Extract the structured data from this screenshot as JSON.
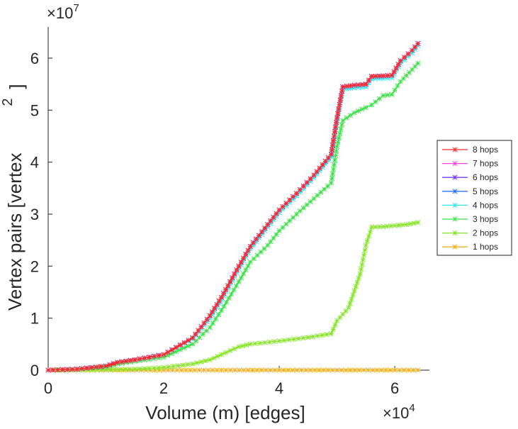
{
  "chart_data": {
    "type": "line",
    "xlabel": "Volume (m) [edges]",
    "ylabel": "Vertex pairs [vertex",
    "ylabel_superscript": "2",
    "ylabel_close": "]",
    "x_exponent_label": "×10",
    "x_exponent": "4",
    "y_exponent_label": "×10",
    "y_exponent": "7",
    "xlim": [
      0,
      6.6
    ],
    "ylim": [
      0,
      6.6
    ],
    "xticks": [
      0,
      2,
      4,
      6
    ],
    "xtick_labels": [
      "0",
      "2",
      "4",
      "6"
    ],
    "yticks": [
      0,
      1,
      2,
      3,
      4,
      5,
      6
    ],
    "ytick_labels": [
      "0",
      "1",
      "2",
      "3",
      "4",
      "5",
      "6"
    ],
    "x_units_scale": 10000,
    "y_units_scale": 10000000,
    "grid": false,
    "legend_position": "right",
    "series": [
      {
        "name": "8 hops",
        "color": "#ff2a2a",
        "x": [
          0,
          0.5,
          1.0,
          1.2,
          1.5,
          2.0,
          2.5,
          2.8,
          3.0,
          3.3,
          3.5,
          3.8,
          4.0,
          4.3,
          4.6,
          4.9,
          5.0,
          5.1,
          5.3,
          5.5,
          5.6,
          5.8,
          5.95,
          6.1,
          6.3,
          6.4
        ],
        "y": [
          0,
          0.02,
          0.08,
          0.15,
          0.2,
          0.3,
          0.62,
          1.05,
          1.4,
          2.0,
          2.38,
          2.8,
          3.08,
          3.4,
          3.75,
          4.15,
          4.85,
          5.45,
          5.48,
          5.5,
          5.65,
          5.66,
          5.67,
          5.95,
          6.15,
          6.28
        ]
      },
      {
        "name": "7 hops",
        "color": "#ff44dd",
        "x": [
          0,
          0.5,
          1.0,
          1.2,
          1.5,
          2.0,
          2.5,
          2.8,
          3.0,
          3.3,
          3.5,
          3.8,
          4.0,
          4.3,
          4.6,
          4.9,
          5.0,
          5.1,
          5.3,
          5.5,
          5.6,
          5.8,
          5.95,
          6.1,
          6.3,
          6.4
        ],
        "y": [
          0,
          0.02,
          0.08,
          0.15,
          0.2,
          0.3,
          0.62,
          1.05,
          1.4,
          2.0,
          2.38,
          2.8,
          3.08,
          3.4,
          3.75,
          4.15,
          4.85,
          5.45,
          5.48,
          5.5,
          5.65,
          5.66,
          5.67,
          5.95,
          6.15,
          6.28
        ]
      },
      {
        "name": "6 hops",
        "color": "#7a3cff",
        "x": [
          0,
          0.5,
          1.0,
          1.2,
          1.5,
          2.0,
          2.5,
          2.8,
          3.0,
          3.3,
          3.5,
          3.8,
          4.0,
          4.3,
          4.6,
          4.9,
          5.0,
          5.1,
          5.3,
          5.5,
          5.6,
          5.8,
          5.95,
          6.1,
          6.3,
          6.4
        ],
        "y": [
          0,
          0.02,
          0.08,
          0.15,
          0.2,
          0.3,
          0.62,
          1.05,
          1.4,
          2.0,
          2.38,
          2.8,
          3.08,
          3.4,
          3.75,
          4.15,
          4.85,
          5.45,
          5.48,
          5.5,
          5.65,
          5.66,
          5.67,
          5.95,
          6.15,
          6.28
        ]
      },
      {
        "name": "5 hops",
        "color": "#2e74ff",
        "x": [
          0,
          0.5,
          1.0,
          1.2,
          1.5,
          2.0,
          2.5,
          2.8,
          3.0,
          3.3,
          3.5,
          3.8,
          4.0,
          4.3,
          4.6,
          4.9,
          5.0,
          5.1,
          5.3,
          5.5,
          5.6,
          5.8,
          5.95,
          6.1,
          6.3,
          6.4
        ],
        "y": [
          0,
          0.02,
          0.08,
          0.15,
          0.2,
          0.3,
          0.62,
          1.05,
          1.4,
          2.0,
          2.38,
          2.8,
          3.08,
          3.4,
          3.75,
          4.15,
          4.85,
          5.45,
          5.48,
          5.5,
          5.65,
          5.66,
          5.67,
          5.95,
          6.15,
          6.28
        ]
      },
      {
        "name": "4 hops",
        "color": "#33e8ef",
        "x": [
          0,
          0.5,
          1.0,
          1.2,
          1.5,
          2.0,
          2.5,
          2.8,
          3.0,
          3.3,
          3.5,
          3.8,
          4.0,
          4.3,
          4.6,
          4.9,
          5.0,
          5.1,
          5.3,
          5.5,
          5.6,
          5.8,
          5.95,
          6.1,
          6.3,
          6.4
        ],
        "y": [
          0,
          0.02,
          0.08,
          0.15,
          0.2,
          0.3,
          0.6,
          1.0,
          1.35,
          1.95,
          2.33,
          2.75,
          3.03,
          3.35,
          3.7,
          4.1,
          4.8,
          5.4,
          5.43,
          5.45,
          5.6,
          5.61,
          5.62,
          5.9,
          6.1,
          6.24
        ]
      },
      {
        "name": "3 hops",
        "color": "#3ee24a",
        "x": [
          0,
          0.5,
          1.0,
          1.2,
          1.5,
          2.0,
          2.5,
          2.8,
          3.0,
          3.3,
          3.5,
          3.8,
          4.0,
          4.3,
          4.6,
          4.9,
          5.0,
          5.1,
          5.3,
          5.5,
          5.6,
          5.8,
          5.95,
          6.1,
          6.3,
          6.4
        ],
        "y": [
          0,
          0.02,
          0.06,
          0.12,
          0.17,
          0.25,
          0.5,
          0.82,
          1.15,
          1.7,
          2.08,
          2.4,
          2.68,
          3.0,
          3.3,
          3.6,
          4.3,
          4.8,
          4.95,
          5.05,
          5.1,
          5.28,
          5.3,
          5.55,
          5.78,
          5.9
        ]
      },
      {
        "name": "2 hops",
        "color": "#88e62a",
        "x": [
          0,
          1.0,
          1.5,
          2.0,
          2.5,
          2.8,
          3.0,
          3.3,
          3.5,
          4.0,
          4.5,
          4.9,
          5.0,
          5.2,
          5.4,
          5.5,
          5.6,
          5.8,
          6.0,
          6.2,
          6.4
        ],
        "y": [
          0,
          0.01,
          0.02,
          0.05,
          0.12,
          0.2,
          0.3,
          0.45,
          0.5,
          0.56,
          0.63,
          0.7,
          0.95,
          1.2,
          1.85,
          2.4,
          2.75,
          2.76,
          2.78,
          2.8,
          2.84
        ]
      },
      {
        "name": "1 hops",
        "color": "#f2b21f",
        "x": [
          0,
          1.0,
          2.0,
          3.0,
          4.0,
          5.0,
          6.0,
          6.4
        ],
        "y": [
          0,
          0,
          0,
          0,
          0.001,
          0.001,
          0.001,
          0.001
        ]
      }
    ]
  }
}
